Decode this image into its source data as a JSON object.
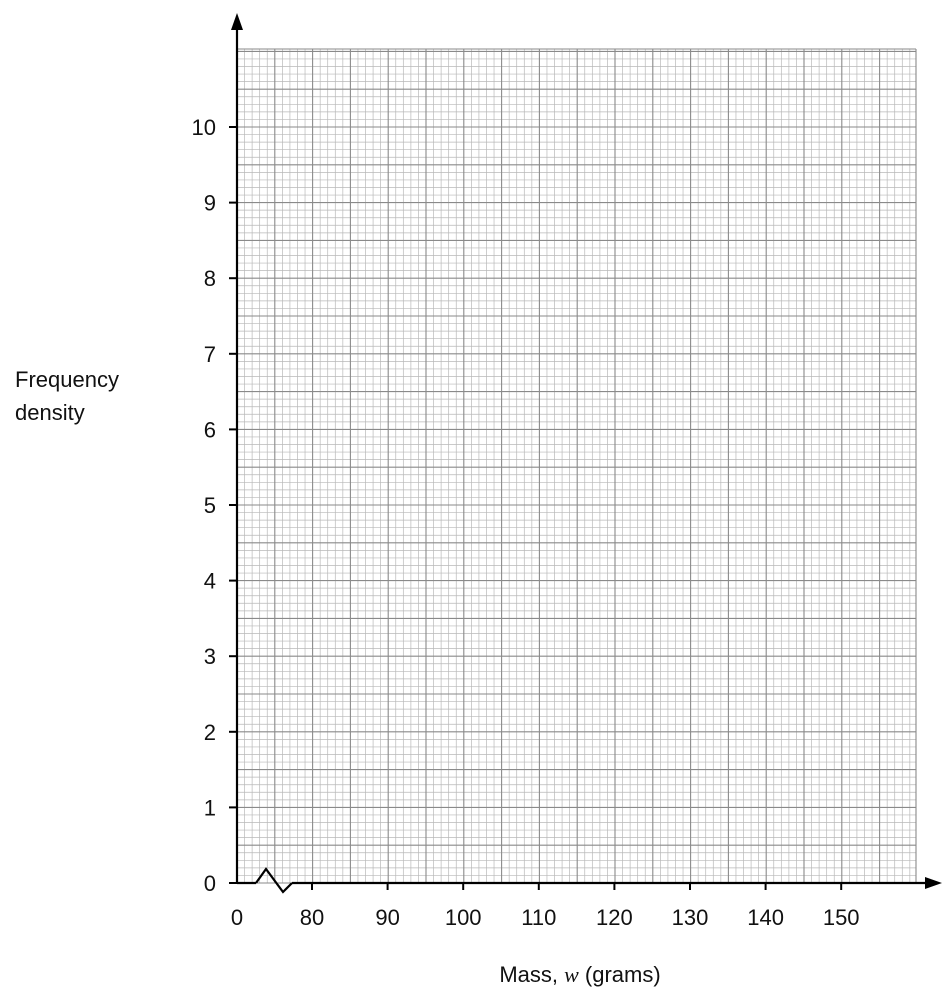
{
  "chart_data": {
    "type": "histogram-grid",
    "xlabel_prefix": "Mass, ",
    "xlabel_var": "w",
    "xlabel_suffix": " (grams)",
    "ylabel_line1": "Frequency",
    "ylabel_line2": "density",
    "xlim": [
      70,
      160
    ],
    "ylim": [
      0,
      11
    ],
    "x_origin_label": "0",
    "x_ticks": [
      80,
      90,
      100,
      110,
      120,
      130,
      140,
      150
    ],
    "y_ticks": [
      0,
      1,
      2,
      3,
      4,
      5,
      6,
      7,
      8,
      9,
      10
    ],
    "x_axis_break": true,
    "grid": true,
    "series": []
  }
}
